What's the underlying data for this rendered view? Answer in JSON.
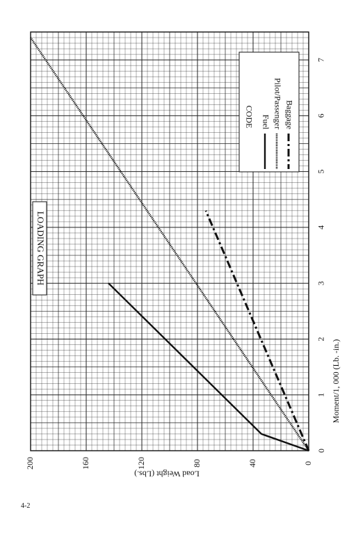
{
  "page": {
    "number": "4-2"
  },
  "chart_data": {
    "type": "line",
    "title": "LOADING GRAPH",
    "xlabel": "Moment/1, 000 (Lb. -in.)",
    "ylabel": "Load Weight (Lbs.)",
    "xlim": [
      0,
      7.5
    ],
    "ylim": [
      0,
      200
    ],
    "x_ticks": [
      "0",
      "1",
      "2",
      "3",
      "4",
      "5",
      "6",
      "7"
    ],
    "y_ticks": [
      "0",
      "40",
      "80",
      "120",
      "160",
      "200"
    ],
    "grid": true,
    "legend": {
      "title": "CODE",
      "placement": "top-right"
    },
    "series": [
      {
        "name": "Fuel",
        "style": "solid",
        "x": [
          0,
          0.3,
          3.0
        ],
        "y": [
          0,
          34,
          144
        ]
      },
      {
        "name": "Pilot/Passenger",
        "style": "dotted",
        "x": [
          0,
          7.4
        ],
        "y": [
          0,
          200
        ]
      },
      {
        "name": "Baggage",
        "style": "dash-dot",
        "x": [
          0,
          4.3
        ],
        "y": [
          0,
          74
        ]
      }
    ]
  }
}
